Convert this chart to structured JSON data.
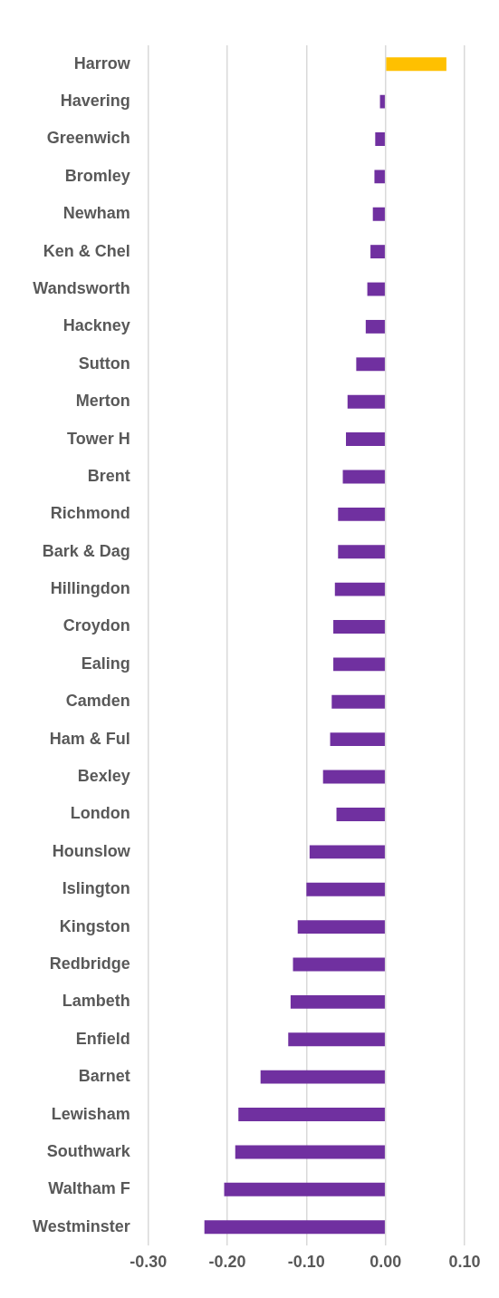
{
  "chart_data": {
    "type": "bar",
    "orientation": "horizontal",
    "categories": [
      "Harrow",
      "Havering",
      "Greenwich",
      "Bromley",
      "Newham",
      "Ken & Chel",
      "Wandsworth",
      "Hackney",
      "Sutton",
      "Merton",
      "Tower H",
      "Brent",
      "Richmond",
      "Bark & Dag",
      "Hillingdon",
      "Croydon",
      "Ealing",
      "Camden",
      "Ham & Ful",
      "Bexley",
      "London",
      "Hounslow",
      "Islington",
      "Kingston",
      "Redbridge",
      "Lambeth",
      "Enfield",
      "Barnet",
      "Lewisham",
      "Southwark",
      "Waltham F",
      "Westminster"
    ],
    "values": [
      0.077,
      -0.007,
      -0.013,
      -0.014,
      -0.016,
      -0.019,
      -0.023,
      -0.025,
      -0.037,
      -0.048,
      -0.05,
      -0.054,
      -0.06,
      -0.06,
      -0.064,
      -0.066,
      -0.066,
      -0.068,
      -0.07,
      -0.079,
      -0.062,
      -0.096,
      -0.1,
      -0.111,
      -0.117,
      -0.12,
      -0.123,
      -0.158,
      -0.186,
      -0.19,
      -0.204,
      -0.229
    ],
    "colors": [
      "#ffc000",
      "#7030a0",
      "#7030a0",
      "#7030a0",
      "#7030a0",
      "#7030a0",
      "#7030a0",
      "#7030a0",
      "#7030a0",
      "#7030a0",
      "#7030a0",
      "#7030a0",
      "#7030a0",
      "#7030a0",
      "#7030a0",
      "#7030a0",
      "#7030a0",
      "#7030a0",
      "#7030a0",
      "#7030a0",
      "#7030a0",
      "#7030a0",
      "#7030a0",
      "#7030a0",
      "#7030a0",
      "#7030a0",
      "#7030a0",
      "#7030a0",
      "#7030a0",
      "#7030a0",
      "#7030a0",
      "#7030a0"
    ],
    "xlim": [
      -0.3,
      0.1
    ],
    "xticks": [
      {
        "value": -0.3,
        "label": "-0.30"
      },
      {
        "value": -0.2,
        "label": "-0.20"
      },
      {
        "value": -0.1,
        "label": "-0.10"
      },
      {
        "value": 0,
        "label": "0.00"
      },
      {
        "value": 0.1,
        "label": "0.10"
      }
    ],
    "grid": "x",
    "legend": false
  }
}
